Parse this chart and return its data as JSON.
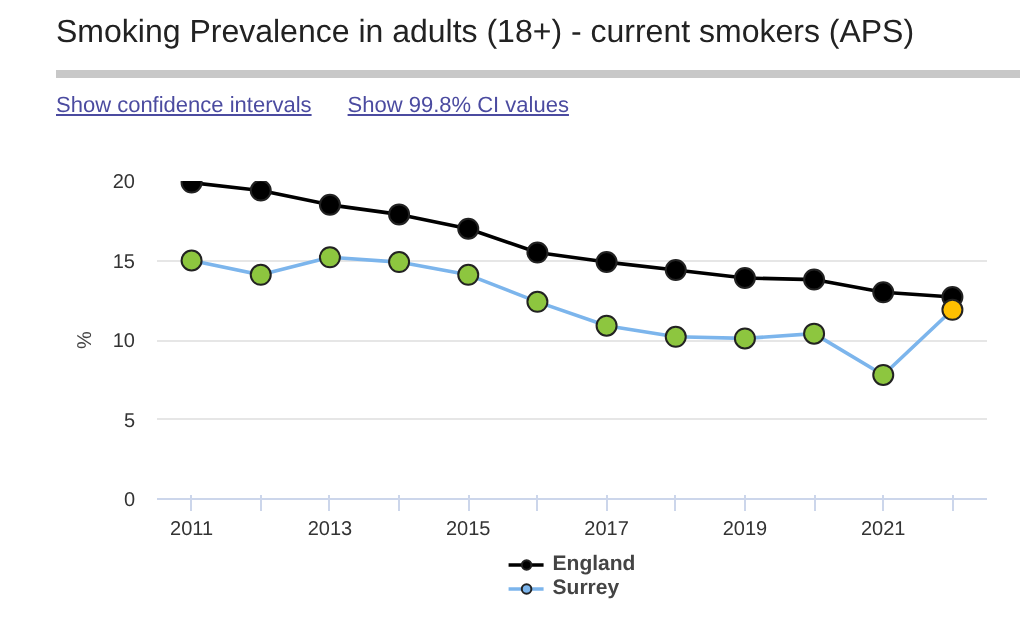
{
  "chart_data": {
    "type": "line",
    "title": "Smoking Prevalence in adults (18+) - current smokers (APS)",
    "annotations": [
      "Show confidence intervals",
      "Show 99.8% CI values"
    ],
    "ylabel": "%",
    "x": [
      2011,
      2012,
      2013,
      2014,
      2015,
      2016,
      2017,
      2018,
      2019,
      2020,
      2021,
      2022
    ],
    "series": [
      {
        "name": "England",
        "color": "#000000",
        "colors": [
          "#000000",
          "#000000",
          "#000000",
          "#000000",
          "#000000",
          "#000000",
          "#000000",
          "#000000",
          "#000000",
          "#000000",
          "#000000",
          "#000000"
        ],
        "values": [
          19.9,
          19.4,
          18.5,
          17.9,
          17.0,
          15.5,
          14.9,
          14.4,
          13.9,
          13.8,
          13.0,
          12.7
        ]
      },
      {
        "name": "Surrey",
        "color": "#7cb5ec",
        "colors": [
          "#8dc63f",
          "#8dc63f",
          "#8dc63f",
          "#8dc63f",
          "#8dc63f",
          "#8dc63f",
          "#8dc63f",
          "#8dc63f",
          "#8dc63f",
          "#8dc63f",
          "#8dc63f",
          "#ffc000"
        ],
        "values": [
          15.0,
          14.1,
          15.2,
          14.9,
          14.1,
          12.4,
          10.9,
          10.2,
          10.1,
          10.4,
          7.8,
          11.9
        ]
      }
    ],
    "xlim": [
      2010.5,
      2022.5
    ],
    "xticks": [
      2011,
      {
        "value": 2012,
        "label": null
      },
      2013,
      {
        "value": 2014,
        "label": null
      },
      2015,
      {
        "value": 2016,
        "label": null
      },
      2017,
      {
        "value": 2018,
        "label": null
      },
      2019,
      {
        "value": 2020,
        "label": null
      },
      2021,
      {
        "value": 2022,
        "label": null
      }
    ],
    "ylim": [
      0,
      20
    ],
    "yticks": [
      0,
      5,
      10,
      15,
      20
    ],
    "grid": "y",
    "legend": "bottom",
    "marker": "circle",
    "line_style": "solid"
  }
}
